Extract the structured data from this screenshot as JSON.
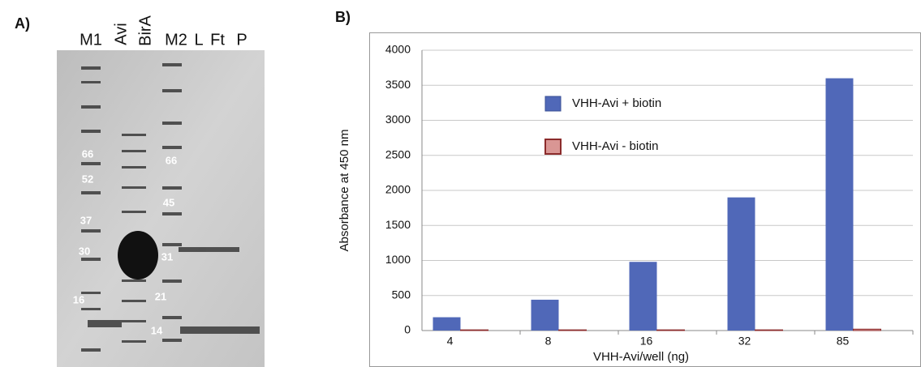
{
  "panel_a": {
    "label": "A)",
    "lanes": [
      "M1",
      "Avi",
      "BirA",
      "M2",
      "L",
      "Ft",
      "P"
    ],
    "m1_markers": [
      "66",
      "52",
      "37",
      "30",
      "16"
    ],
    "m2_markers": [
      "66",
      "45",
      "31",
      "21",
      "14"
    ]
  },
  "panel_b": {
    "label": "B)"
  },
  "chart_data": {
    "type": "bar",
    "y_label": "Absorbance at 450 nm",
    "x_label": "VHH-Avi/well (ng)",
    "categories": [
      "4",
      "8",
      "16",
      "32",
      "85"
    ],
    "series": [
      {
        "name": "VHH-Avi + biotin",
        "color": "#5068b8",
        "values": [
          190,
          440,
          980,
          1900,
          3600
        ]
      },
      {
        "name": "VHH-Avi - biotin",
        "color": "#d99694",
        "values": [
          10,
          10,
          10,
          10,
          20
        ]
      }
    ],
    "ylim": [
      0,
      4000
    ],
    "yticks": [
      0,
      500,
      1000,
      1500,
      2000,
      2500,
      3000,
      3500,
      4000
    ],
    "grid": true
  }
}
